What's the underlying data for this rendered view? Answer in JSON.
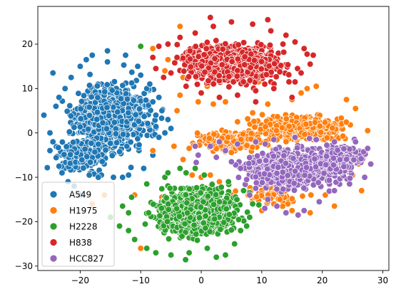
{
  "chart_data": {
    "type": "scatter",
    "title": "",
    "xlabel": "",
    "ylabel": "",
    "xlim": [
      -27,
      31
    ],
    "ylim": [
      -31,
      28.5
    ],
    "xticks": [
      -20,
      -10,
      0,
      10,
      20,
      30
    ],
    "yticks": [
      -30,
      -20,
      -10,
      0,
      10,
      20
    ],
    "xtick_labels": [
      "−20",
      "−10",
      "0",
      "10",
      "20",
      "30"
    ],
    "ytick_labels": [
      "−30",
      "−20",
      "−10",
      "0",
      "10",
      "20"
    ],
    "grid": false,
    "legend_position": "lower-left",
    "point_edge_color": "#ffffff",
    "series": [
      {
        "name": "A549",
        "color": "#1f77b4",
        "clusters": [
          {
            "center": [
              -15,
              3.5
            ],
            "spread": [
              4.6,
              5.6
            ],
            "count": 1400
          },
          {
            "center": [
              -20,
              -5
            ],
            "spread": [
              3.2,
              3.0
            ],
            "count": 250
          }
        ],
        "points": [
          [
            -26,
            4
          ],
          [
            -25,
            0
          ],
          [
            -24.5,
            13.5
          ],
          [
            -23.5,
            -7.5
          ],
          [
            -22,
            -11
          ],
          [
            -21,
            -12
          ],
          [
            -20,
            -14
          ],
          [
            -18,
            17.5
          ],
          [
            -15.5,
            18.5
          ],
          [
            -12.5,
            17.5
          ],
          [
            -10,
            13
          ],
          [
            -9,
            10
          ],
          [
            -8,
            7
          ],
          [
            -6.5,
            5
          ],
          [
            -5.5,
            3
          ],
          [
            -7,
            -1
          ],
          [
            -8,
            -5
          ],
          [
            -9.5,
            -8
          ],
          [
            -12,
            -9.5
          ],
          [
            -14.5,
            -10
          ],
          [
            -16.5,
            -9.5
          ],
          [
            -18.5,
            -9.5
          ],
          [
            -15.5,
            16
          ],
          [
            -20,
            15
          ],
          [
            -22.5,
            10
          ],
          [
            -24,
            6
          ],
          [
            -24.5,
            -2
          ],
          [
            -25,
            -4
          ],
          [
            -23,
            -9
          ],
          [
            -6,
            0
          ],
          [
            -5,
            1
          ],
          [
            -7.5,
            4
          ],
          [
            -7,
            8
          ],
          [
            -8.5,
            11
          ],
          [
            -13,
            -10
          ],
          [
            -17,
            -10
          ],
          [
            -10.5,
            15
          ],
          [
            -19,
            16.5
          ],
          [
            -21.5,
            12.5
          ],
          [
            -23.5,
            8
          ]
        ]
      },
      {
        "name": "H1975",
        "color": "#ff7f0e",
        "clusters": [
          {
            "center": [
              16,
              1
            ],
            "spread": [
              5.2,
              2.0
            ],
            "count": 650
          },
          {
            "center": [
              5,
              -2
            ],
            "spread": [
              4.5,
              1.8
            ],
            "count": 250
          },
          {
            "center": [
              12,
              -14
            ],
            "spread": [
              4.5,
              2.0
            ],
            "count": 70
          }
        ],
        "points": [
          [
            -8,
            19
          ],
          [
            -3.5,
            24
          ],
          [
            -5.5,
            16.5
          ],
          [
            -6,
            14
          ],
          [
            -3,
            12.5
          ],
          [
            1,
            10.5
          ],
          [
            3,
            8
          ],
          [
            2,
            6.5
          ],
          [
            -3.5,
            8.5
          ],
          [
            -4,
            5
          ],
          [
            -8,
            -4
          ],
          [
            -3,
            -6
          ],
          [
            -2,
            -3.5
          ],
          [
            -4.5,
            -3
          ],
          [
            -1.5,
            -9.5
          ],
          [
            0,
            -10
          ],
          [
            -6.5,
            -14.5
          ],
          [
            -11,
            -14
          ],
          [
            -18,
            -16
          ],
          [
            -16,
            -14
          ],
          [
            -10,
            -26
          ],
          [
            1.5,
            -9.5
          ],
          [
            3,
            -11
          ],
          [
            8.5,
            4.5
          ],
          [
            11,
            6.5
          ],
          [
            15,
            7.5
          ],
          [
            16.5,
            9
          ],
          [
            17.5,
            10
          ],
          [
            19,
            10.5
          ],
          [
            24,
            7.5
          ],
          [
            25.5,
            5.5
          ],
          [
            27.5,
            0.5
          ],
          [
            23,
            -4
          ],
          [
            26,
            -7
          ],
          [
            25,
            -9.5
          ],
          [
            13,
            -15
          ],
          [
            15,
            -17.5
          ],
          [
            18,
            -18
          ],
          [
            8.5,
            -16
          ],
          [
            10,
            -17.5
          ],
          [
            12,
            -16
          ],
          [
            5,
            -14
          ],
          [
            27,
            -5
          ],
          [
            26.5,
            -13
          ],
          [
            22,
            -16.5
          ],
          [
            20.5,
            -14
          ],
          [
            6,
            2.5
          ],
          [
            4,
            7
          ],
          [
            9.5,
            11.5
          ],
          [
            -0.5,
            7
          ]
        ]
      },
      {
        "name": "H2228",
        "color": "#2ca02c",
        "clusters": [
          {
            "center": [
              -1,
              -18
            ],
            "spread": [
              5.0,
              4.0
            ],
            "count": 1300
          }
        ],
        "points": [
          [
            -12,
            -18
          ],
          [
            -13.5,
            -21
          ],
          [
            -11,
            -24
          ],
          [
            -9,
            -26
          ],
          [
            -5,
            -27.5
          ],
          [
            -2,
            -27
          ],
          [
            1,
            -26
          ],
          [
            4,
            -27.5
          ],
          [
            6.5,
            -22
          ],
          [
            8,
            -19
          ],
          [
            8.5,
            -16
          ],
          [
            7,
            -13
          ],
          [
            4.5,
            -11
          ],
          [
            0.5,
            -9.5
          ],
          [
            -2.5,
            -9
          ],
          [
            -6,
            -10
          ],
          [
            -9,
            -11.5
          ],
          [
            -11.5,
            -14.5
          ],
          [
            -13,
            -16.5
          ],
          [
            -15,
            -19
          ],
          [
            -10,
            19.5
          ],
          [
            -12,
            -22
          ],
          [
            -7.5,
            -27
          ],
          [
            2.5,
            -28
          ],
          [
            5.5,
            -25
          ],
          [
            7.5,
            -21
          ],
          [
            8,
            -13.5
          ],
          [
            -3.5,
            -8
          ],
          [
            -5.5,
            -9
          ],
          [
            -1,
            -8
          ]
        ]
      },
      {
        "name": "H838",
        "color": "#d62728",
        "clusters": [
          {
            "center": [
              5,
              15.5
            ],
            "spread": [
              6.0,
              3.2
            ],
            "count": 1300
          }
        ],
        "points": [
          [
            -7,
            19.5
          ],
          [
            -4,
            17
          ],
          [
            -5.5,
            20
          ],
          [
            -7.5,
            14.5
          ],
          [
            -5,
            13.5
          ],
          [
            -2.5,
            10.5
          ],
          [
            0,
            9
          ],
          [
            3,
            8
          ],
          [
            6,
            8.5
          ],
          [
            9,
            9.5
          ],
          [
            12,
            10
          ],
          [
            14.5,
            11.5
          ],
          [
            16.5,
            13.5
          ],
          [
            18,
            15.5
          ],
          [
            18.5,
            17.5
          ],
          [
            17,
            19
          ],
          [
            15.5,
            20.5
          ],
          [
            14,
            22
          ],
          [
            11.5,
            23
          ],
          [
            8.5,
            24.5
          ],
          [
            5,
            25
          ],
          [
            2,
            24
          ],
          [
            -1,
            22.5
          ],
          [
            -3.5,
            21.5
          ],
          [
            1.5,
            26
          ],
          [
            11,
            25.5
          ],
          [
            13.5,
            20
          ],
          [
            -8,
            17
          ],
          [
            15,
            8
          ],
          [
            9,
            7
          ]
        ]
      },
      {
        "name": "HCC827",
        "color": "#9467bd",
        "clusters": [
          {
            "center": [
              15,
              -8
            ],
            "spread": [
              6.0,
              3.2
            ],
            "count": 1200
          },
          {
            "center": [
              23,
              -6
            ],
            "spread": [
              3.0,
              2.5
            ],
            "count": 250
          }
        ],
        "points": [
          [
            -1,
            -3
          ],
          [
            -0.5,
            -5
          ],
          [
            1.5,
            -3
          ],
          [
            2.5,
            -5.5
          ],
          [
            4,
            -4
          ],
          [
            5,
            -6.5
          ],
          [
            6.5,
            -8
          ],
          [
            7.5,
            -10.5
          ],
          [
            9,
            -12.5
          ],
          [
            11,
            -15
          ],
          [
            12.5,
            -16.5
          ],
          [
            14,
            -18
          ],
          [
            17,
            -17.5
          ],
          [
            19.5,
            -15.5
          ],
          [
            22,
            -13
          ],
          [
            24.5,
            -11.5
          ],
          [
            27,
            -10
          ],
          [
            28,
            -7
          ],
          [
            27.5,
            -3.5
          ],
          [
            25.5,
            -2
          ],
          [
            22,
            -2
          ],
          [
            19,
            -1.5
          ],
          [
            15.5,
            -1
          ],
          [
            12,
            -1.5
          ],
          [
            9,
            -2
          ],
          [
            6,
            -2.5
          ],
          [
            3,
            -2
          ],
          [
            8,
            -14
          ],
          [
            10.5,
            -17
          ],
          [
            16,
            -18.5
          ]
        ]
      }
    ]
  }
}
